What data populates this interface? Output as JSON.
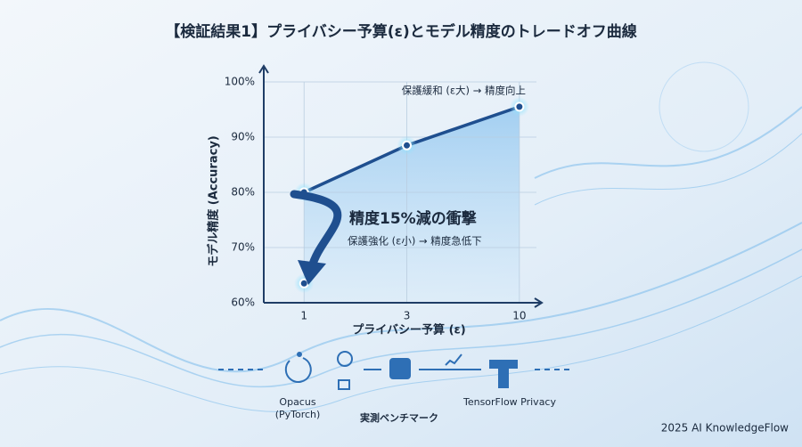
{
  "chart_data": {
    "type": "line",
    "title": "【検証結果1】プライバシー予算(ε)とモデル精度のトレードオフ曲線",
    "x_label": "プライバシー予算 (ε)",
    "y_label": "モデル精度 (Accuracy)",
    "x_scale": "log",
    "xlim": [
      0.65,
      12
    ],
    "xticks": [
      1,
      3,
      10
    ],
    "ylim": [
      60,
      100
    ],
    "yticks": [
      {
        "value": 60,
        "label": "60%"
      },
      {
        "value": 70,
        "label": "70%"
      },
      {
        "value": 80,
        "label": "80%"
      },
      {
        "value": 90,
        "label": "90%"
      },
      {
        "value": 100,
        "label": "100%"
      }
    ],
    "grid": true,
    "series": [
      {
        "color": "#1f4f8f",
        "x": [
          1,
          3,
          10
        ],
        "values": [
          80,
          88.5,
          95.5
        ]
      },
      {
        "color": "#1f4f8f",
        "x": [
          1
        ],
        "values": [
          63.5
        ]
      }
    ],
    "annotations": [
      "保護緩和 (ε大) → 精度向上",
      "精度15%減の衝撃",
      "保護強化 (ε小) → 精度急低下"
    ]
  },
  "workflow": {
    "items": [
      "Opacus",
      "(PyTorch)",
      "実測ベンチマーク",
      "TensorFlow Privacy"
    ]
  },
  "footer": "2025 AI KnowledgeFlow"
}
